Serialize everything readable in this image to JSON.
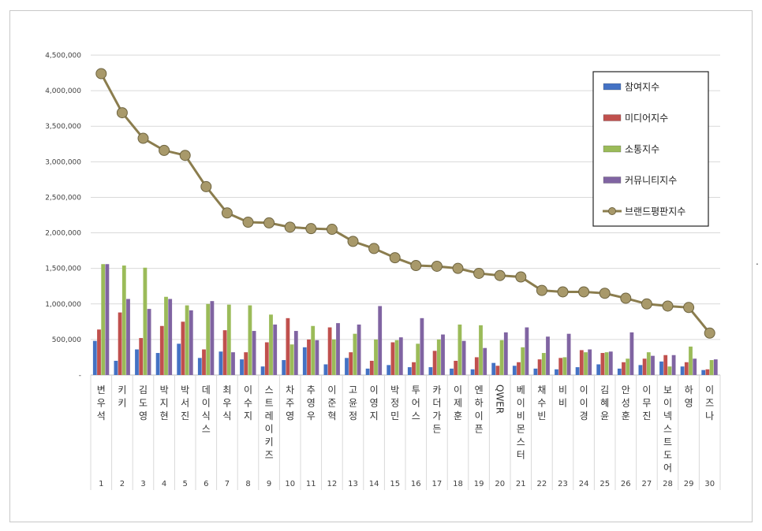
{
  "chart_data": {
    "type": "bar",
    "ylim": [
      0,
      4500000
    ],
    "yticks": [
      "-",
      "500,000",
      "1,000,000",
      "1,500,000",
      "2,000,000",
      "2,500,000",
      "3,000,000",
      "3,500,000",
      "4,000,000",
      "4,500,000"
    ],
    "categories": [
      "변우석",
      "키키",
      "김도영",
      "박지현",
      "박서진",
      "데이식스",
      "최우식",
      "이수지",
      "스트레이키즈",
      "차주영",
      "추영우",
      "이준혁",
      "고윤정",
      "이영지",
      "박정민",
      "투어스",
      "카더가든",
      "이제훈",
      "엔하이픈",
      "QWER",
      "베이비몬스터",
      "채수빈",
      "비비",
      "이이경",
      "김혜윤",
      "안성훈",
      "이무진",
      "보이넥스트도어",
      "하영",
      "이즈나"
    ],
    "ranks": [
      "1",
      "2",
      "3",
      "4",
      "5",
      "6",
      "7",
      "8",
      "9",
      "10",
      "11",
      "12",
      "13",
      "14",
      "15",
      "16",
      "17",
      "18",
      "19",
      "20",
      "21",
      "22",
      "23",
      "24",
      "25",
      "26",
      "27",
      "28",
      "29",
      "30"
    ],
    "grid": true,
    "legend_position": "top-right",
    "series": [
      {
        "name": "참여지수",
        "type": "bar",
        "color": "#4472C4",
        "values": [
          480000,
          200000,
          360000,
          310000,
          440000,
          240000,
          330000,
          220000,
          120000,
          210000,
          390000,
          150000,
          240000,
          90000,
          140000,
          110000,
          110000,
          90000,
          80000,
          170000,
          130000,
          90000,
          80000,
          110000,
          150000,
          90000,
          140000,
          190000,
          120000,
          70000
        ]
      },
      {
        "name": "미디어지수",
        "type": "bar",
        "color": "#C0504D",
        "values": [
          640000,
          880000,
          520000,
          690000,
          750000,
          360000,
          630000,
          320000,
          460000,
          800000,
          500000,
          670000,
          320000,
          200000,
          460000,
          180000,
          340000,
          200000,
          250000,
          130000,
          180000,
          220000,
          240000,
          350000,
          310000,
          180000,
          230000,
          280000,
          180000,
          80000
        ]
      },
      {
        "name": "소통지수",
        "type": "bar",
        "color": "#9BBB59",
        "values": [
          1560000,
          1540000,
          1510000,
          1100000,
          980000,
          1000000,
          990000,
          980000,
          850000,
          430000,
          690000,
          500000,
          580000,
          500000,
          490000,
          440000,
          500000,
          710000,
          700000,
          490000,
          390000,
          310000,
          250000,
          320000,
          320000,
          230000,
          320000,
          120000,
          400000,
          210000
        ]
      },
      {
        "name": "커뮤니티지수",
        "type": "bar",
        "color": "#8064A2",
        "values": [
          1560000,
          1070000,
          930000,
          1070000,
          910000,
          1040000,
          320000,
          620000,
          710000,
          620000,
          490000,
          730000,
          710000,
          970000,
          530000,
          800000,
          570000,
          480000,
          380000,
          600000,
          670000,
          540000,
          580000,
          360000,
          330000,
          600000,
          270000,
          280000,
          230000,
          220000
        ]
      },
      {
        "name": "브랜드평판지수",
        "type": "line",
        "color": "#8B7D4E",
        "marker_color": "#A8996A",
        "values": [
          4240000,
          3690000,
          3330000,
          3160000,
          3090000,
          2650000,
          2280000,
          2150000,
          2140000,
          2080000,
          2060000,
          2050000,
          1880000,
          1780000,
          1650000,
          1540000,
          1530000,
          1500000,
          1430000,
          1400000,
          1380000,
          1190000,
          1170000,
          1170000,
          1150000,
          1080000,
          1000000,
          970000,
          950000,
          590000
        ]
      }
    ]
  },
  "stray_mark": "."
}
